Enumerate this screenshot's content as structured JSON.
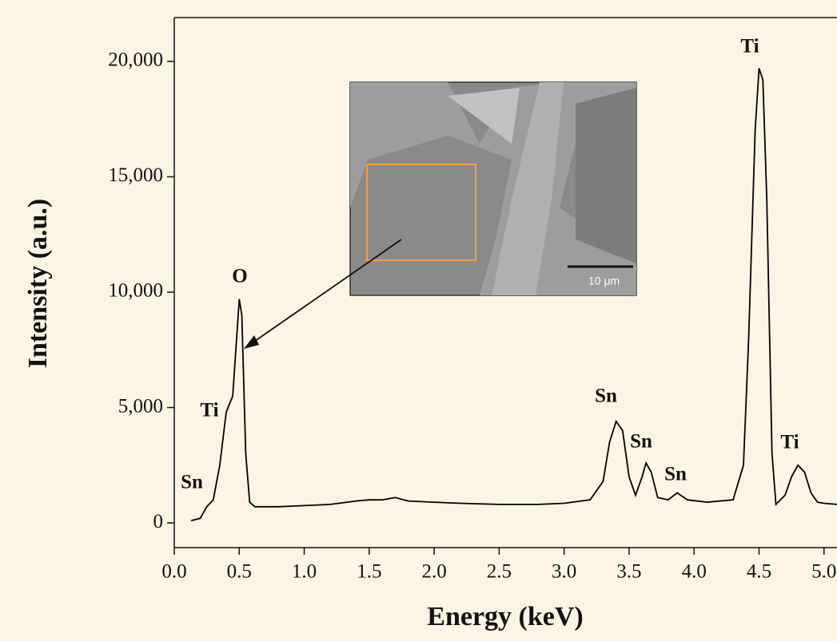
{
  "chart_data": {
    "type": "line",
    "x_label": "Energy (keV)",
    "y_label": "Intensity (a.u.)",
    "color": "#000000",
    "x": [
      0.13,
      0.2,
      0.25,
      0.3,
      0.35,
      0.4,
      0.45,
      0.48,
      0.5,
      0.52,
      0.55,
      0.58,
      0.62,
      0.8,
      1.0,
      1.2,
      1.4,
      1.5,
      1.6,
      1.7,
      1.8,
      2.0,
      2.2,
      2.5,
      2.8,
      3.0,
      3.2,
      3.3,
      3.35,
      3.4,
      3.45,
      3.5,
      3.55,
      3.6,
      3.63,
      3.67,
      3.72,
      3.8,
      3.87,
      3.95,
      4.1,
      4.3,
      4.38,
      4.42,
      4.47,
      4.5,
      4.53,
      4.56,
      4.6,
      4.63,
      4.7,
      4.75,
      4.8,
      4.85,
      4.9,
      4.95,
      5.0,
      5.1
    ],
    "values": [
      100,
      200,
      700,
      1000,
      2500,
      4800,
      5500,
      8000,
      9700,
      9000,
      3000,
      900,
      700,
      700,
      750,
      800,
      950,
      1000,
      1000,
      1100,
      950,
      900,
      850,
      800,
      800,
      850,
      1000,
      1800,
      3500,
      4400,
      4000,
      2000,
      1200,
      2000,
      2600,
      2200,
      1100,
      1000,
      1300,
      1000,
      900,
      1000,
      2500,
      8000,
      17000,
      19700,
      19200,
      14000,
      3000,
      800,
      1200,
      2000,
      2500,
      2200,
      1300,
      900,
      850,
      800
    ],
    "xlim": [
      0,
      5.1
    ],
    "ylim": [
      -1070,
      21900
    ],
    "xticks": [
      {
        "value": 0,
        "label": "0.0"
      },
      0.5,
      {
        "value": 1,
        "label": "1.0"
      },
      1.5,
      {
        "value": 2,
        "label": "2.0"
      },
      2.5,
      {
        "value": 3,
        "label": "3.0"
      },
      3.5,
      {
        "value": 4,
        "label": "4.0"
      },
      4.5,
      {
        "value": 5,
        "label": "5.0"
      }
    ],
    "yticks": [
      0,
      {
        "value": 5000,
        "label": "5,000"
      },
      {
        "value": 10000,
        "label": "10,000"
      },
      {
        "value": 15000,
        "label": "15,000"
      },
      {
        "value": 20000,
        "label": "20,000"
      }
    ],
    "peak_labels": [
      "Sn",
      "Ti",
      "O",
      "Sn",
      "Sn",
      "Sn",
      "Ti",
      "Ti"
    ],
    "inset_scale_label": "10 μm"
  }
}
